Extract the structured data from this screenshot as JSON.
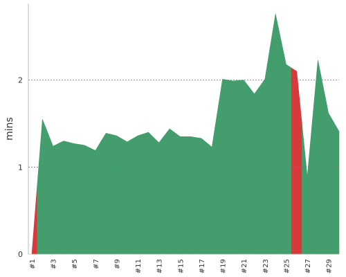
{
  "chart_data": {
    "type": "area",
    "y_label": "mins",
    "categories": [
      "#1",
      null,
      "#3",
      null,
      "#5",
      null,
      "#7",
      null,
      "#9",
      null,
      "#11",
      null,
      "#13",
      null,
      "#15",
      null,
      "#17",
      null,
      "#19",
      null,
      "#21",
      null,
      "#23",
      null,
      "#25",
      null,
      "#27",
      null,
      "#29",
      null
    ],
    "values": [
      0,
      1.55,
      1.24,
      1.3,
      1.27,
      1.25,
      1.19,
      1.39,
      1.36,
      1.29,
      1.36,
      1.4,
      1.28,
      1.44,
      1.35,
      1.35,
      1.33,
      1.23,
      2.01,
      1.99,
      2.0,
      1.84,
      2.01,
      2.76,
      2.18,
      2.1,
      0.89,
      2.23,
      1.62,
      1.41
    ],
    "colors": [
      "#d63a3a",
      "#439d6c",
      "#439d6c",
      "#439d6c",
      "#439d6c",
      "#439d6c",
      "#439d6c",
      "#439d6c",
      "#439d6c",
      "#439d6c",
      "#439d6c",
      "#439d6c",
      "#439d6c",
      "#439d6c",
      "#439d6c",
      "#439d6c",
      "#439d6c",
      "#439d6c",
      "#439d6c",
      "#439d6c",
      "#439d6c",
      "#439d6c",
      "#439d6c",
      "#439d6c",
      "#439d6c",
      "#d63a3a",
      "#439d6c",
      "#439d6c",
      "#439d6c",
      "#439d6c"
    ],
    "ylim": [
      0,
      2.88
    ],
    "yticks": [
      0,
      1,
      2
    ],
    "grid": true
  }
}
